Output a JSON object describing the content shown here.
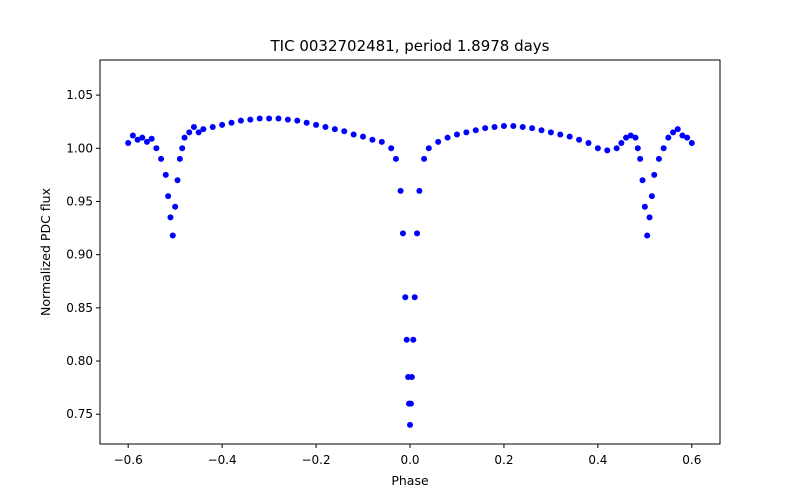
{
  "chart_data": {
    "type": "scatter",
    "title": "TIC 0032702481, period 1.8978 days",
    "xlabel": "Phase",
    "ylabel": "Normalized PDC flux",
    "xlim": [
      -0.66,
      0.66
    ],
    "ylim": [
      0.722,
      1.083
    ],
    "x_ticks": [
      -0.6,
      -0.4,
      -0.2,
      0.0,
      0.2,
      0.4,
      0.6
    ],
    "x_tick_labels": [
      "−0.6",
      "−0.4",
      "−0.2",
      "0.0",
      "0.2",
      "0.4",
      "0.6"
    ],
    "y_ticks": [
      0.75,
      0.8,
      0.85,
      0.9,
      0.95,
      1.0,
      1.05
    ],
    "y_tick_labels": [
      "0.75",
      "0.80",
      "0.85",
      "0.90",
      "0.95",
      "1.00",
      "1.05"
    ],
    "grid": false,
    "marker_color": "#0000ff",
    "series": [
      {
        "name": "PDC flux",
        "x": [
          -0.6,
          -0.59,
          -0.58,
          -0.57,
          -0.56,
          -0.55,
          -0.54,
          -0.53,
          -0.52,
          -0.515,
          -0.51,
          -0.505,
          -0.5,
          -0.495,
          -0.49,
          -0.485,
          -0.48,
          -0.47,
          -0.46,
          -0.45,
          -0.44,
          -0.42,
          -0.4,
          -0.38,
          -0.36,
          -0.34,
          -0.32,
          -0.3,
          -0.28,
          -0.26,
          -0.24,
          -0.22,
          -0.2,
          -0.18,
          -0.16,
          -0.14,
          -0.12,
          -0.1,
          -0.08,
          -0.06,
          -0.04,
          -0.03,
          -0.02,
          -0.015,
          -0.01,
          -0.007,
          -0.004,
          -0.002,
          0.0,
          0.002,
          0.004,
          0.007,
          0.01,
          0.015,
          0.02,
          0.03,
          0.04,
          0.06,
          0.08,
          0.1,
          0.12,
          0.14,
          0.16,
          0.18,
          0.2,
          0.22,
          0.24,
          0.26,
          0.28,
          0.3,
          0.32,
          0.34,
          0.36,
          0.38,
          0.4,
          0.42,
          0.44,
          0.45,
          0.46,
          0.47,
          0.48,
          0.485,
          0.49,
          0.495,
          0.5,
          0.505,
          0.51,
          0.515,
          0.52,
          0.53,
          0.54,
          0.55,
          0.56,
          0.57,
          0.58,
          0.59,
          0.6
        ],
        "y": [
          1.005,
          1.012,
          1.008,
          1.01,
          1.006,
          1.009,
          1.0,
          0.99,
          0.975,
          0.955,
          0.935,
          0.918,
          0.945,
          0.97,
          0.99,
          1.0,
          1.01,
          1.015,
          1.02,
          1.015,
          1.018,
          1.02,
          1.022,
          1.024,
          1.026,
          1.027,
          1.028,
          1.028,
          1.028,
          1.027,
          1.026,
          1.024,
          1.022,
          1.02,
          1.018,
          1.016,
          1.013,
          1.011,
          1.008,
          1.006,
          1.0,
          0.99,
          0.96,
          0.92,
          0.86,
          0.82,
          0.785,
          0.76,
          0.74,
          0.76,
          0.785,
          0.82,
          0.86,
          0.92,
          0.96,
          0.99,
          1.0,
          1.006,
          1.01,
          1.013,
          1.015,
          1.017,
          1.019,
          1.02,
          1.021,
          1.021,
          1.02,
          1.019,
          1.017,
          1.015,
          1.013,
          1.011,
          1.008,
          1.005,
          1.0,
          0.998,
          1.0,
          1.005,
          1.01,
          1.012,
          1.01,
          1.0,
          0.99,
          0.97,
          0.945,
          0.918,
          0.935,
          0.955,
          0.975,
          0.99,
          1.0,
          1.01,
          1.015,
          1.018,
          1.012,
          1.01,
          1.005
        ]
      }
    ]
  }
}
